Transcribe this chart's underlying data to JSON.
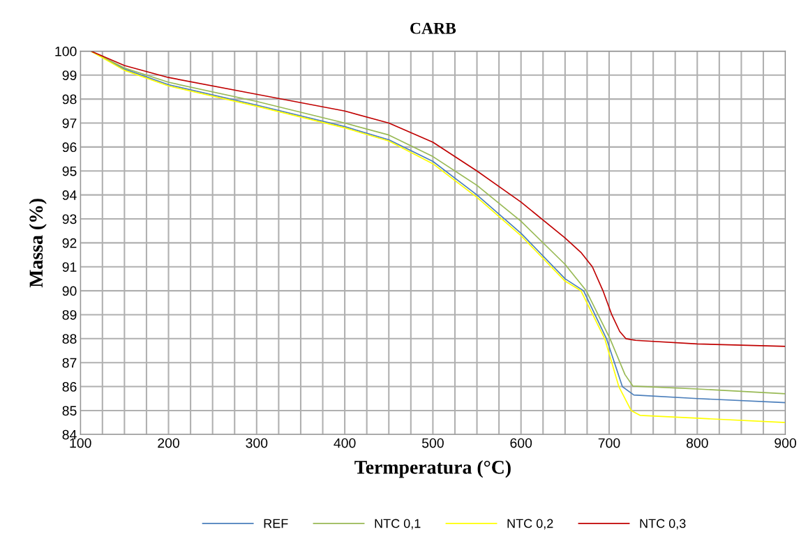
{
  "chart_data": {
    "type": "line",
    "title": "CARB",
    "xlabel": "Termperatura (°C)",
    "ylabel": "Massa (%)",
    "xlim": [
      100,
      900
    ],
    "ylim": [
      84,
      100
    ],
    "xticks": [
      100,
      {
        "value": 125,
        "label": null
      },
      {
        "value": 150,
        "label": null
      },
      {
        "value": 175,
        "label": null
      },
      200,
      {
        "value": 225,
        "label": null
      },
      {
        "value": 250,
        "label": null
      },
      {
        "value": 275,
        "label": null
      },
      300,
      {
        "value": 325,
        "label": null
      },
      {
        "value": 350,
        "label": null
      },
      {
        "value": 375,
        "label": null
      },
      400,
      {
        "value": 425,
        "label": null
      },
      {
        "value": 450,
        "label": null
      },
      {
        "value": 475,
        "label": null
      },
      500,
      {
        "value": 525,
        "label": null
      },
      {
        "value": 550,
        "label": null
      },
      {
        "value": 575,
        "label": null
      },
      600,
      {
        "value": 625,
        "label": null
      },
      {
        "value": 650,
        "label": null
      },
      {
        "value": 675,
        "label": null
      },
      700,
      {
        "value": 725,
        "label": null
      },
      {
        "value": 750,
        "label": null
      },
      {
        "value": 775,
        "label": null
      },
      800,
      {
        "value": 825,
        "label": null
      },
      {
        "value": 850,
        "label": null
      },
      {
        "value": 875,
        "label": null
      },
      900
    ],
    "yticks": [
      84,
      85,
      86,
      87,
      88,
      89,
      90,
      91,
      92,
      93,
      94,
      95,
      96,
      97,
      98,
      99,
      100
    ],
    "grid": true,
    "legend": "bottom",
    "series": [
      {
        "name": "REF",
        "color": "#4a7ebb",
        "x": [
          112,
          150,
          200,
          300,
          400,
          450,
          500,
          550,
          600,
          650,
          671,
          697,
          715,
          728,
          800,
          900
        ],
        "values": [
          100,
          99.25,
          98.6,
          97.75,
          96.85,
          96.3,
          95.4,
          94.0,
          92.4,
          90.5,
          90.0,
          88.0,
          86.0,
          85.65,
          85.5,
          85.33
        ]
      },
      {
        "name": "NTC 0,1",
        "color": "#98b954",
        "x": [
          112,
          150,
          200,
          300,
          400,
          450,
          500,
          550,
          600,
          650,
          674,
          701,
          718,
          727,
          800,
          900
        ],
        "values": [
          100,
          99.3,
          98.7,
          97.9,
          97.0,
          96.5,
          95.6,
          94.4,
          92.9,
          91.1,
          90.0,
          88.0,
          86.5,
          86.02,
          85.9,
          85.7
        ]
      },
      {
        "name": "NTC 0,2",
        "color": "#ffff00",
        "x": [
          112,
          150,
          200,
          300,
          400,
          450,
          500,
          550,
          600,
          650,
          668,
          695,
          711,
          725,
          735,
          800,
          900
        ],
        "values": [
          100,
          99.2,
          98.55,
          97.7,
          96.8,
          96.25,
          95.3,
          93.9,
          92.3,
          90.4,
          90.0,
          88.0,
          86.0,
          85.0,
          84.8,
          84.68,
          84.5
        ]
      },
      {
        "name": "NTC 0,3",
        "color": "#c00000",
        "x": [
          112,
          150,
          200,
          300,
          400,
          450,
          500,
          550,
          600,
          650,
          668,
          681,
          693,
          703,
          712,
          719,
          730,
          800,
          900
        ],
        "values": [
          100,
          99.4,
          98.9,
          98.2,
          97.5,
          97.0,
          96.2,
          95.0,
          93.7,
          92.2,
          91.6,
          91.0,
          90.0,
          89.0,
          88.3,
          88.0,
          87.93,
          87.78,
          87.68
        ]
      }
    ]
  }
}
